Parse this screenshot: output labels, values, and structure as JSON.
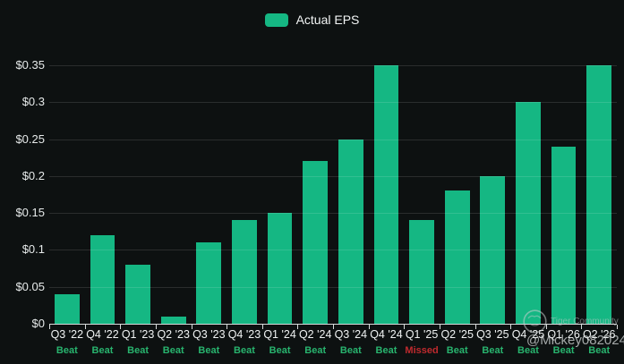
{
  "legend": {
    "label": "Actual EPS"
  },
  "watermark": {
    "community": "Tiger Community",
    "user": "@Mickey082024"
  },
  "colors": {
    "background": "#0d1111",
    "bar": "#15b783",
    "beat_text": "#28b46e",
    "missed_text": "#bf2a2e",
    "axis": "#d8dbdb",
    "label_text": "#e6eaea"
  },
  "chart_data": {
    "type": "bar",
    "title": "Actual EPS",
    "categories": [
      "Q3 '22",
      "Q4 '22",
      "Q1 '23",
      "Q2 '23",
      "Q3 '23",
      "Q4 '23",
      "Q1 '24",
      "Q2 '24",
      "Q3 '24",
      "Q4 '24",
      "Q1 '25",
      "Q2 '25",
      "Q3 '25",
      "Q4 '25",
      "Q1 '26",
      "Q2 '26"
    ],
    "values": [
      0.04,
      0.12,
      0.08,
      0.01,
      0.11,
      0.14,
      0.15,
      0.22,
      0.25,
      0.35,
      0.14,
      0.18,
      0.2,
      0.3,
      0.24,
      0.35
    ],
    "statuses": [
      "Beat",
      "Beat",
      "Beat",
      "Beat",
      "Beat",
      "Beat",
      "Beat",
      "Beat",
      "Beat",
      "Beat",
      "Missed",
      "Beat",
      "Beat",
      "Beat",
      "Beat",
      "Beat"
    ],
    "xlabel": "",
    "ylabel": "",
    "ylim": [
      0,
      0.35
    ],
    "yticks": [
      0,
      0.05,
      0.1,
      0.15,
      0.2,
      0.25,
      0.3,
      0.35
    ],
    "ytick_labels": [
      "$0",
      "$0.05",
      "$0.1",
      "$0.15",
      "$0.2",
      "$0.25",
      "$0.3",
      "$0.35"
    ],
    "grid": true,
    "legend_position": "top-center",
    "bar_color": "#15b783"
  }
}
